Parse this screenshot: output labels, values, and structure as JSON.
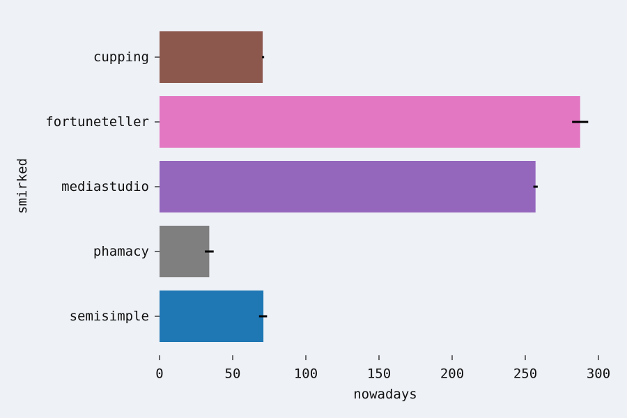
{
  "chart_data": {
    "type": "bar",
    "orientation": "horizontal",
    "xlabel": "nowadays",
    "ylabel": "smirked",
    "xlim": [
      0,
      300
    ],
    "x_ticks": [
      0,
      50,
      100,
      150,
      200,
      250,
      300
    ],
    "x_tick_labels": [
      "0",
      "50",
      "100",
      "150",
      "200",
      "250",
      "300"
    ],
    "categories": [
      "cupping",
      "fortuneteller",
      "mediastudio",
      "phamacy",
      "semisimple"
    ],
    "values": [
      70.5,
      287.5,
      257,
      34,
      71
    ],
    "error_bars": [
      {
        "low": 70,
        "high": 71.5
      },
      {
        "low": 282,
        "high": 293
      },
      {
        "low": 255.5,
        "high": 258.5
      },
      {
        "low": 31,
        "high": 37
      },
      {
        "low": 68,
        "high": 73.5
      }
    ],
    "colors": [
      "#8c574c",
      "#e377c2",
      "#9467bd",
      "#7f7f7f",
      "#1f77b4"
    ],
    "error_color": "#000000",
    "grid": false,
    "legend": "none"
  }
}
